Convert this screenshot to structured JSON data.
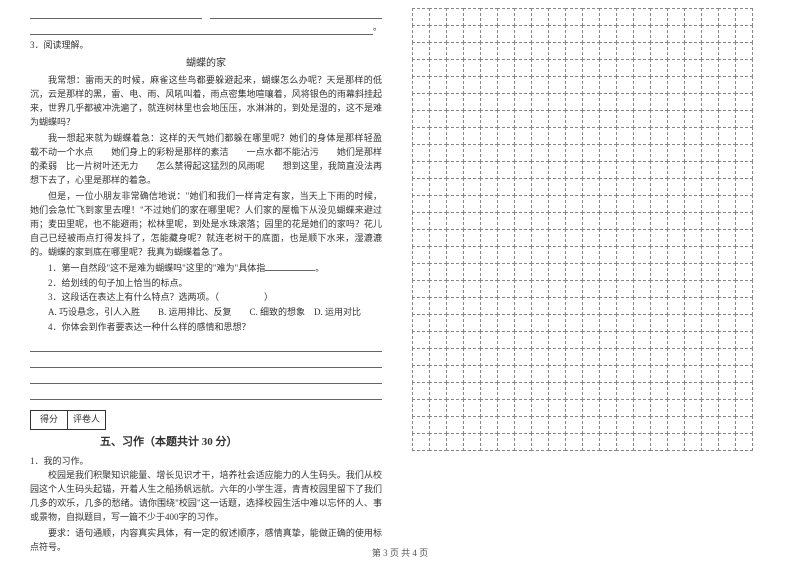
{
  "top_blank_suffix": "。",
  "q3": "3．阅读理解。",
  "passage_title": "蝴蝶的家",
  "p1": "我常想：雷雨天的时候，麻雀这些鸟都要躲避起来，蝴蝶怎么办呢？天是那样的低沉，云是那样的黑，雷、电、雨、风吼叫着，雨点密集地喧嚷着，风将银色的雨幕斜挂起来，世界几乎都被冲洗遍了，就连树林里也会地压压，水淋淋的，到处是湿的，这不是难为蝴蝶吗？",
  "p2": "我一想起来就为蝴蝶着急：这样的天气她们都躲在哪里呢？她们的身体是那样轻盈　载不动一个水点　　她们身上的彩粉是那样的素洁　　一点水都不能沾污　　她们是那样的柔弱　比一片树叶还无力　　怎么禁得起这猛烈的风雨呢　　想到这里，我简直没法再想下去了，心里是那样的着急。",
  "p3": "但是，一位小朋友非常确信地说：\"她们和我们一样肯定有家，当天上下雨的时候，她们会急忙飞到家里去哩！\"不过她们的家在哪里呢？人们家的屋檐下从没见蝴蝶来避过雨；麦田里呢，也不能避雨；松林里呢，到处是水珠滚落；园里的花是她们的家吗？花儿自己已经被雨点打得发抖了，怎能藏身呢？就连老树干的底面，也是顺下水来，湿漉漉的。蝴蝶的家到底在哪里呢？我真为蝴蝶着急了。",
  "s1": "1．第一自然段\"这不是难为蝴蝶吗\"这里的\"难为\"具体指",
  "s1_tail": "。",
  "s2": "2．给划线的句子加上恰当的标点。",
  "s3": "3．这段话在表达上有什么特点？选两项。（　　　　　）",
  "s3a": "A. 巧设悬念，引人入胜　　B. 运用排比、反复　　C. 细致的想象　D. 运用对比",
  "s4": "4．你体会到作者要表达一种什么样的感情和思想？",
  "score_label1": "得分",
  "score_label2": "评卷人",
  "section5": "五、习作（本题共计 30 分）",
  "w1": "1．我的习作。",
  "wp1": "校园是我们积聚知识能量、增长见识才干，培养社会适应能力的人生码头。我们从校园这个人生码头起锚，开着人生之船扬帆远航。六年的小学生涯，青青校园里留下了我们几多的欢乐，几多的愁绪。请你围绕\"校园\"这一话题，选择校园生活中难以忘怀的人、事或景物，自拟题目，写一篇不少于400字的习作。",
  "wp2": "要求：语句通顺，内容真实具体，有一定的叙述顺序，感情真挚，能做正确的使用标点符号。",
  "footer": "第 3 页 共 4 页",
  "grid": {
    "cols": 20,
    "rows": 26
  },
  "colors": {
    "text": "#333333",
    "line": "#666666",
    "dash": "#888888",
    "bg": "#ffffff"
  }
}
